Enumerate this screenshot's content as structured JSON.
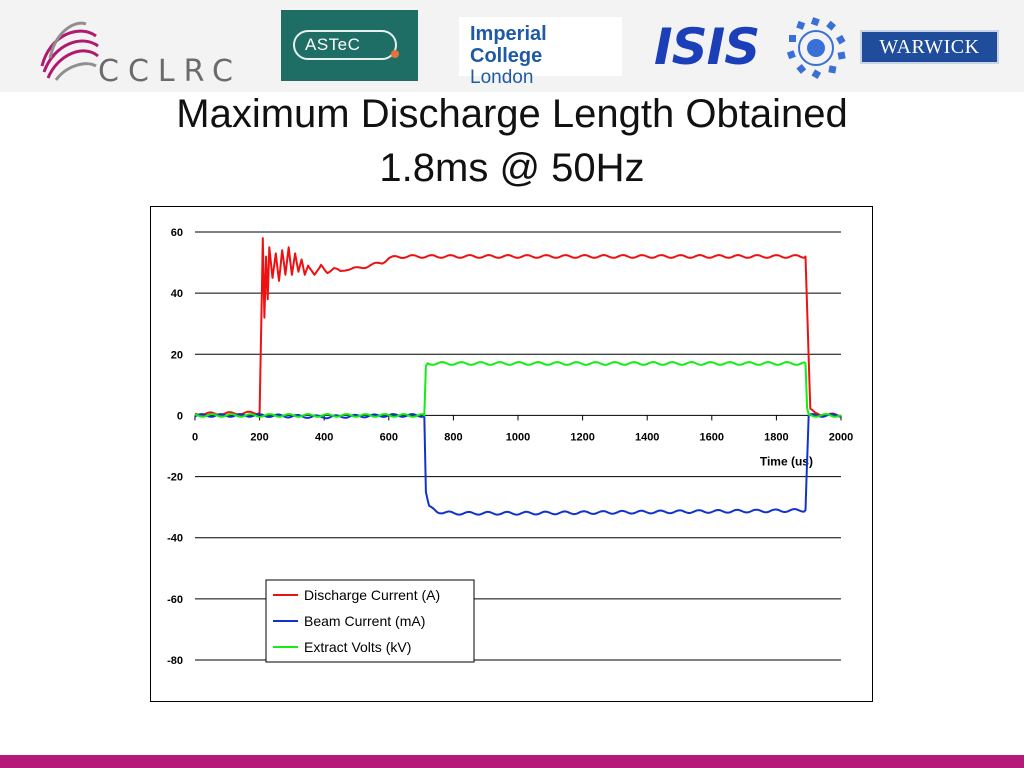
{
  "header": {
    "logos": {
      "cclrc": "CCLRC",
      "astec": "ASTeC",
      "imperial_line1": "Imperial College",
      "imperial_line2": "London",
      "isis": "ISIS",
      "warwick": "WARWICK"
    }
  },
  "slide": {
    "title_line1": "Maximum Discharge Length Obtained",
    "title_line2": "1.8ms @ 50Hz"
  },
  "colors": {
    "discharge": "#ee1111",
    "beam": "#1133cc",
    "extract": "#11ee11",
    "accent_bar": "#b5197a"
  },
  "chart_data": {
    "type": "line",
    "title": "",
    "xlabel": "Time (us)",
    "ylabel": "",
    "xlim": [
      0,
      2000
    ],
    "ylim": [
      -80,
      60
    ],
    "x_ticks": [
      0,
      200,
      400,
      600,
      800,
      1000,
      1200,
      1400,
      1600,
      1800,
      2000
    ],
    "y_ticks": [
      60,
      40,
      20,
      0,
      -20,
      -40,
      -60,
      -80
    ],
    "grid": true,
    "legend_position": "bottom-left",
    "series": [
      {
        "name": "Discharge Current (A)",
        "color": "#ee1111",
        "points": [
          [
            0,
            0.5
          ],
          [
            100,
            0.6
          ],
          [
            180,
            0.8
          ],
          [
            200,
            1
          ],
          [
            210,
            58
          ],
          [
            215,
            32
          ],
          [
            220,
            52
          ],
          [
            225,
            38
          ],
          [
            230,
            55
          ],
          [
            240,
            45
          ],
          [
            250,
            53
          ],
          [
            260,
            44
          ],
          [
            270,
            54
          ],
          [
            280,
            46
          ],
          [
            290,
            55
          ],
          [
            300,
            46
          ],
          [
            310,
            53
          ],
          [
            320,
            47
          ],
          [
            330,
            51
          ],
          [
            340,
            46
          ],
          [
            350,
            49
          ],
          [
            370,
            46
          ],
          [
            390,
            49
          ],
          [
            410,
            47
          ],
          [
            430,
            48
          ],
          [
            450,
            47
          ],
          [
            470,
            48
          ],
          [
            500,
            48
          ],
          [
            540,
            49
          ],
          [
            580,
            50
          ],
          [
            600,
            51.5
          ],
          [
            650,
            52
          ],
          [
            800,
            52
          ],
          [
            1000,
            52
          ],
          [
            1200,
            52
          ],
          [
            1400,
            52
          ],
          [
            1600,
            52
          ],
          [
            1800,
            52
          ],
          [
            1890,
            52
          ],
          [
            1905,
            2
          ],
          [
            1920,
            0.5
          ],
          [
            2000,
            0
          ]
        ]
      },
      {
        "name": "Beam Current (mA)",
        "color": "#1133cc",
        "points": [
          [
            0,
            0
          ],
          [
            200,
            0
          ],
          [
            400,
            -0.5
          ],
          [
            600,
            0
          ],
          [
            710,
            0
          ],
          [
            715,
            -25
          ],
          [
            725,
            -30
          ],
          [
            750,
            -31.5
          ],
          [
            800,
            -32
          ],
          [
            1000,
            -32
          ],
          [
            1200,
            -31.8
          ],
          [
            1400,
            -31.6
          ],
          [
            1600,
            -31.4
          ],
          [
            1800,
            -31.2
          ],
          [
            1890,
            -31
          ],
          [
            1900,
            0
          ],
          [
            2000,
            0
          ]
        ]
      },
      {
        "name": "Extract Volts (kV)",
        "color": "#11ee11",
        "points": [
          [
            0,
            0
          ],
          [
            200,
            0
          ],
          [
            400,
            0
          ],
          [
            600,
            0
          ],
          [
            710,
            0
          ],
          [
            715,
            16
          ],
          [
            720,
            17
          ],
          [
            1000,
            17
          ],
          [
            1200,
            17
          ],
          [
            1400,
            17
          ],
          [
            1600,
            17
          ],
          [
            1800,
            17
          ],
          [
            1890,
            17
          ],
          [
            1895,
            2
          ],
          [
            1900,
            0
          ],
          [
            2000,
            0
          ]
        ]
      }
    ]
  }
}
